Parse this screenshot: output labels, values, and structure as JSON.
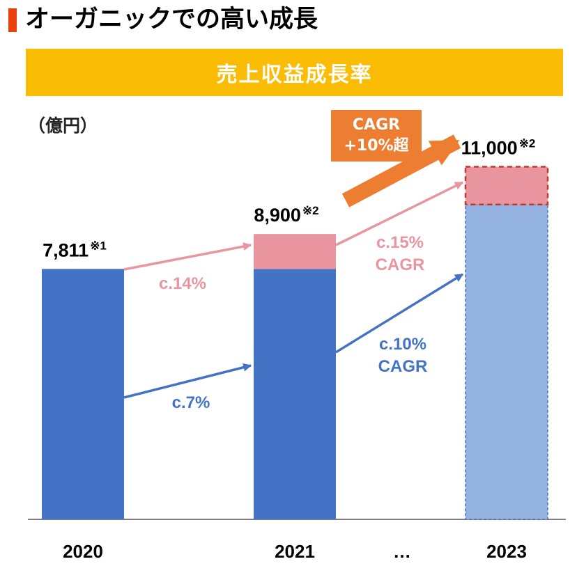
{
  "page": {
    "title": "オーガニックでの高い成長",
    "banner": "売上収益成長率",
    "unit_label": "（億円）",
    "cagr_box": {
      "line1": "CAGR",
      "line2": "+10%超"
    }
  },
  "colors": {
    "accent_red": "#e8410d",
    "banner_yellow": "#fbbc05",
    "bar_blue": "#4472c4",
    "bar_light_blue": "#93b2df",
    "growth_pink": "#e8959f",
    "arrow_orange": "#ed7d31",
    "outline_red": "#c0392b"
  },
  "chart_data": {
    "type": "bar",
    "categories": [
      "2020",
      "2021",
      "…",
      "2023"
    ],
    "ylim": [
      0,
      11000
    ],
    "bars": [
      {
        "category": "2020",
        "base": 7811,
        "increment": 0,
        "total_label": "7,811",
        "note": "※1",
        "projected": false
      },
      {
        "category": "2021",
        "base": 7811,
        "increment": 1089,
        "total_label": "8,900",
        "note": "※2",
        "projected": false
      },
      {
        "category": "2023",
        "base": 9820,
        "increment": 1180,
        "total_label": "11,000",
        "note": "※2",
        "projected": true
      }
    ],
    "growth_labels": [
      {
        "text": "c.14%",
        "kind": "pink"
      },
      {
        "text": "c.7%",
        "kind": "blue"
      },
      {
        "text": "c.15%",
        "text2": "CAGR",
        "kind": "pink"
      },
      {
        "text": "c.10%",
        "text2": "CAGR",
        "kind": "blue"
      }
    ]
  }
}
